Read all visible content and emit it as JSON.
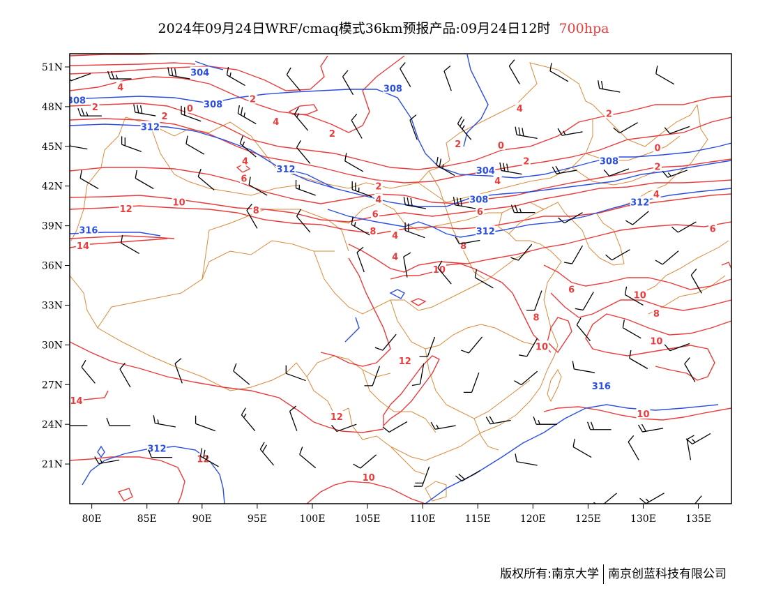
{
  "title": {
    "main": "2024年09月24日WRF/cmaq模式36km预报产品:09月24日12时",
    "level": "700hpa"
  },
  "footer": {
    "copyright": "版权所有:南京大学",
    "company": "南京创蓝科技有限公司"
  },
  "axes": {
    "x_ticks": [
      "80E",
      "85E",
      "90E",
      "95E",
      "100E",
      "105E",
      "110E",
      "115E",
      "120E",
      "125E",
      "130E",
      "135E"
    ],
    "y_ticks": [
      "51N",
      "48N",
      "45N",
      "42N",
      "39N",
      "36N",
      "33N",
      "30N",
      "27N",
      "24N",
      "21N"
    ],
    "lon_range": [
      78,
      138
    ],
    "lat_range": [
      18,
      52
    ]
  },
  "colors": {
    "temperature": "#e83c3c",
    "height": "#2a4ee0",
    "boundary": "#d98a3a",
    "wind": "#000000"
  },
  "height_labels": [
    {
      "text": "304",
      "lon": 89.8,
      "lat": 50.6
    },
    {
      "text": "308",
      "lon": 78.6,
      "lat": 48.5
    },
    {
      "text": "308",
      "lon": 91.0,
      "lat": 48.2
    },
    {
      "text": "308",
      "lon": 107.3,
      "lat": 49.4
    },
    {
      "text": "312",
      "lon": 85.3,
      "lat": 46.5
    },
    {
      "text": "312",
      "lon": 97.6,
      "lat": 43.3
    },
    {
      "text": "304",
      "lon": 115.7,
      "lat": 43.2
    },
    {
      "text": "308",
      "lon": 126.9,
      "lat": 43.9
    },
    {
      "text": "308",
      "lon": 115.1,
      "lat": 41.0
    },
    {
      "text": "312",
      "lon": 129.7,
      "lat": 40.8
    },
    {
      "text": "312",
      "lon": 115.7,
      "lat": 38.6
    },
    {
      "text": "316",
      "lon": 79.7,
      "lat": 38.7
    },
    {
      "text": "316",
      "lon": 126.2,
      "lat": 26.9
    },
    {
      "text": "312",
      "lon": 85.9,
      "lat": 22.2
    }
  ],
  "temp_labels": [
    {
      "text": "4",
      "lon": 82.6,
      "lat": 49.5
    },
    {
      "text": "2",
      "lon": 80.3,
      "lat": 48.0
    },
    {
      "text": "2",
      "lon": 86.6,
      "lat": 47.3
    },
    {
      "text": "0",
      "lon": 88.9,
      "lat": 47.9
    },
    {
      "text": "2",
      "lon": 94.6,
      "lat": 48.6
    },
    {
      "text": "4",
      "lon": 96.7,
      "lat": 46.9
    },
    {
      "text": "2",
      "lon": 101.8,
      "lat": 46.0
    },
    {
      "text": "4",
      "lon": 93.9,
      "lat": 43.9
    },
    {
      "text": "6",
      "lon": 93.8,
      "lat": 42.6
    },
    {
      "text": "8",
      "lon": 94.9,
      "lat": 40.2
    },
    {
      "text": "10",
      "lon": 87.9,
      "lat": 40.8
    },
    {
      "text": "12",
      "lon": 83.1,
      "lat": 40.3
    },
    {
      "text": "14",
      "lon": 79.2,
      "lat": 37.5
    },
    {
      "text": "4",
      "lon": 118.8,
      "lat": 47.9
    },
    {
      "text": "2",
      "lon": 113.2,
      "lat": 45.2
    },
    {
      "text": "0",
      "lon": 117.1,
      "lat": 45.1
    },
    {
      "text": "2",
      "lon": 119.4,
      "lat": 43.9
    },
    {
      "text": "4",
      "lon": 116.8,
      "lat": 42.4
    },
    {
      "text": "2",
      "lon": 126.9,
      "lat": 47.5
    },
    {
      "text": "0",
      "lon": 131.3,
      "lat": 44.9
    },
    {
      "text": "2",
      "lon": 131.3,
      "lat": 43.5
    },
    {
      "text": "4",
      "lon": 131.2,
      "lat": 41.4
    },
    {
      "text": "2",
      "lon": 106.0,
      "lat": 42.0
    },
    {
      "text": "4",
      "lon": 106.0,
      "lat": 41.0
    },
    {
      "text": "6",
      "lon": 105.7,
      "lat": 39.9
    },
    {
      "text": "8",
      "lon": 105.5,
      "lat": 38.6
    },
    {
      "text": "6",
      "lon": 115.2,
      "lat": 40.1
    },
    {
      "text": "8",
      "lon": 113.7,
      "lat": 37.5
    },
    {
      "text": "4",
      "lon": 107.5,
      "lat": 38.3
    },
    {
      "text": "4",
      "lon": 107.5,
      "lat": 36.7
    },
    {
      "text": "10",
      "lon": 111.5,
      "lat": 35.7
    },
    {
      "text": "6",
      "lon": 136.3,
      "lat": 38.8
    },
    {
      "text": "6",
      "lon": 123.5,
      "lat": 34.2
    },
    {
      "text": "10",
      "lon": 129.7,
      "lat": 33.8
    },
    {
      "text": "8",
      "lon": 131.2,
      "lat": 32.4
    },
    {
      "text": "8",
      "lon": 120.3,
      "lat": 32.1
    },
    {
      "text": "10",
      "lon": 131.2,
      "lat": 30.3
    },
    {
      "text": "10",
      "lon": 120.8,
      "lat": 29.9
    },
    {
      "text": "12",
      "lon": 108.4,
      "lat": 28.8
    },
    {
      "text": "12",
      "lon": 102.2,
      "lat": 24.6
    },
    {
      "text": "14",
      "lon": 78.6,
      "lat": 25.8
    },
    {
      "text": "10",
      "lon": 130.0,
      "lat": 24.8
    },
    {
      "text": "12",
      "lon": 90.1,
      "lat": 21.4
    },
    {
      "text": "10",
      "lon": 105.1,
      "lat": 20.0
    }
  ],
  "wind_barbs": [
    {
      "lon": 79.9,
      "lat": 50.5,
      "dir": 250,
      "spd": 10
    },
    {
      "lon": 83.6,
      "lat": 50.1,
      "dir": 270,
      "spd": 25
    },
    {
      "lon": 88.9,
      "lat": 50.1,
      "dir": 280,
      "spd": 30
    },
    {
      "lon": 93.9,
      "lat": 49.6,
      "dir": 300,
      "spd": 15
    },
    {
      "lon": 98.9,
      "lat": 49.2,
      "dir": 320,
      "spd": 10
    },
    {
      "lon": 103.7,
      "lat": 48.9,
      "dir": 330,
      "spd": 10
    },
    {
      "lon": 108.9,
      "lat": 49.5,
      "dir": 330,
      "spd": 10
    },
    {
      "lon": 112.6,
      "lat": 49.2,
      "dir": 340,
      "spd": 10
    },
    {
      "lon": 118.8,
      "lat": 49.7,
      "dir": 330,
      "spd": 10
    },
    {
      "lon": 123.2,
      "lat": 49.9,
      "dir": 300,
      "spd": 10
    },
    {
      "lon": 127.9,
      "lat": 49.1,
      "dir": 280,
      "spd": 20
    },
    {
      "lon": 132.8,
      "lat": 49.7,
      "dir": 300,
      "spd": 10
    },
    {
      "lon": 80.9,
      "lat": 47.3,
      "dir": 270,
      "spd": 25
    },
    {
      "lon": 85.8,
      "lat": 47.3,
      "dir": 280,
      "spd": 30
    },
    {
      "lon": 89.9,
      "lat": 46.9,
      "dir": 290,
      "spd": 20
    },
    {
      "lon": 94.9,
      "lat": 46.7,
      "dir": 300,
      "spd": 25
    },
    {
      "lon": 99.6,
      "lat": 46.2,
      "dir": 320,
      "spd": 15
    },
    {
      "lon": 104.5,
      "lat": 45.6,
      "dir": 330,
      "spd": 10
    },
    {
      "lon": 109.5,
      "lat": 45.5,
      "dir": 340,
      "spd": 10
    },
    {
      "lon": 114.4,
      "lat": 45.5,
      "dir": 320,
      "spd": 25
    },
    {
      "lon": 120.4,
      "lat": 45.6,
      "dir": 280,
      "spd": 30
    },
    {
      "lon": 124.5,
      "lat": 46.1,
      "dir": 260,
      "spd": 15
    },
    {
      "lon": 129.5,
      "lat": 46.8,
      "dir": 240,
      "spd": 10
    },
    {
      "lon": 134.2,
      "lat": 46.5,
      "dir": 250,
      "spd": 10
    },
    {
      "lon": 79.6,
      "lat": 44.8,
      "dir": 280,
      "spd": 20
    },
    {
      "lon": 84.5,
      "lat": 44.6,
      "dir": 290,
      "spd": 20
    },
    {
      "lon": 90.2,
      "lat": 44.4,
      "dir": 300,
      "spd": 10
    },
    {
      "lon": 94.9,
      "lat": 44.2,
      "dir": 310,
      "spd": 15
    },
    {
      "lon": 99.8,
      "lat": 43.7,
      "dir": 320,
      "spd": 10
    },
    {
      "lon": 104.6,
      "lat": 43.1,
      "dir": 300,
      "spd": 10
    },
    {
      "lon": 112.9,
      "lat": 42.8,
      "dir": 300,
      "spd": 25
    },
    {
      "lon": 119.0,
      "lat": 42.9,
      "dir": 280,
      "spd": 30
    },
    {
      "lon": 124.0,
      "lat": 43.2,
      "dir": 260,
      "spd": 20
    },
    {
      "lon": 128.7,
      "lat": 43.3,
      "dir": 250,
      "spd": 10
    },
    {
      "lon": 134.0,
      "lat": 43.2,
      "dir": 250,
      "spd": 15
    },
    {
      "lon": 80.6,
      "lat": 41.8,
      "dir": 300,
      "spd": 10
    },
    {
      "lon": 85.6,
      "lat": 41.8,
      "dir": 300,
      "spd": 10
    },
    {
      "lon": 91.1,
      "lat": 41.7,
      "dir": 310,
      "spd": 10
    },
    {
      "lon": 95.9,
      "lat": 41.3,
      "dir": 300,
      "spd": 10
    },
    {
      "lon": 100.3,
      "lat": 41.3,
      "dir": 290,
      "spd": 15
    },
    {
      "lon": 105.4,
      "lat": 41.2,
      "dir": 290,
      "spd": 25
    },
    {
      "lon": 110.3,
      "lat": 40.3,
      "dir": 280,
      "spd": 30
    },
    {
      "lon": 114.8,
      "lat": 40.3,
      "dir": 280,
      "spd": 30
    },
    {
      "lon": 120.2,
      "lat": 40.0,
      "dir": 270,
      "spd": 25
    },
    {
      "lon": 124.5,
      "lat": 40.0,
      "dir": 240,
      "spd": 10
    },
    {
      "lon": 130.5,
      "lat": 40.1,
      "dir": 230,
      "spd": 10
    },
    {
      "lon": 134.8,
      "lat": 39.3,
      "dir": 240,
      "spd": 10
    },
    {
      "lon": 95.0,
      "lat": 38.8,
      "dir": 330,
      "spd": 10
    },
    {
      "lon": 99.8,
      "lat": 38.5,
      "dir": 320,
      "spd": 10
    },
    {
      "lon": 105.2,
      "lat": 38.3,
      "dir": 300,
      "spd": 15
    },
    {
      "lon": 110.2,
      "lat": 38.1,
      "dir": 290,
      "spd": 20
    },
    {
      "lon": 115.2,
      "lat": 37.9,
      "dir": 260,
      "spd": 10
    },
    {
      "lon": 119.9,
      "lat": 37.6,
      "dir": 220,
      "spd": 10
    },
    {
      "lon": 124.5,
      "lat": 37.5,
      "dir": 210,
      "spd": 10
    },
    {
      "lon": 128.8,
      "lat": 37.2,
      "dir": 240,
      "spd": 10
    },
    {
      "lon": 133.2,
      "lat": 37.1,
      "dir": 230,
      "spd": 10
    },
    {
      "lon": 84.3,
      "lat": 36.9,
      "dir": 300,
      "spd": 10
    },
    {
      "lon": 104.7,
      "lat": 35.5,
      "dir": 340,
      "spd": 10
    },
    {
      "lon": 108.6,
      "lat": 35.1,
      "dir": 350,
      "spd": 10
    },
    {
      "lon": 112.6,
      "lat": 34.6,
      "dir": 320,
      "spd": 10
    },
    {
      "lon": 116.4,
      "lat": 34.3,
      "dir": 300,
      "spd": 10
    },
    {
      "lon": 120.8,
      "lat": 34.1,
      "dir": 200,
      "spd": 10
    },
    {
      "lon": 125.5,
      "lat": 34.0,
      "dir": 210,
      "spd": 10
    },
    {
      "lon": 130.0,
      "lat": 33.0,
      "dir": 300,
      "spd": 10
    },
    {
      "lon": 135.3,
      "lat": 33.9,
      "dir": 330,
      "spd": 10
    },
    {
      "lon": 107.6,
      "lat": 30.8,
      "dir": 220,
      "spd": 10
    },
    {
      "lon": 111.1,
      "lat": 30.6,
      "dir": 200,
      "spd": 10
    },
    {
      "lon": 115.4,
      "lat": 30.6,
      "dir": 220,
      "spd": 10
    },
    {
      "lon": 120.4,
      "lat": 30.5,
      "dir": 210,
      "spd": 10
    },
    {
      "lon": 125.2,
      "lat": 30.3,
      "dir": 320,
      "spd": 10
    },
    {
      "lon": 129.8,
      "lat": 30.5,
      "dir": 300,
      "spd": 10
    },
    {
      "lon": 134.2,
      "lat": 30.1,
      "dir": 250,
      "spd": 10
    },
    {
      "lon": 106.1,
      "lat": 28.4,
      "dir": 200,
      "spd": 10
    },
    {
      "lon": 110.1,
      "lat": 28.6,
      "dir": 190,
      "spd": 10
    },
    {
      "lon": 115.1,
      "lat": 27.9,
      "dir": 200,
      "spd": 10
    },
    {
      "lon": 120.4,
      "lat": 28.0,
      "dir": 230,
      "spd": 10
    },
    {
      "lon": 125.6,
      "lat": 27.9,
      "dir": 280,
      "spd": 10
    },
    {
      "lon": 130.4,
      "lat": 28.2,
      "dir": 300,
      "spd": 10
    },
    {
      "lon": 134.7,
      "lat": 27.2,
      "dir": 330,
      "spd": 10
    },
    {
      "lon": 80.3,
      "lat": 27.1,
      "dir": 320,
      "spd": 10
    },
    {
      "lon": 83.5,
      "lat": 26.8,
      "dir": 330,
      "spd": 10
    },
    {
      "lon": 88.2,
      "lat": 27.1,
      "dir": 340,
      "spd": 10
    },
    {
      "lon": 94.3,
      "lat": 27.0,
      "dir": 310,
      "spd": 10
    },
    {
      "lon": 99.4,
      "lat": 27.3,
      "dir": 290,
      "spd": 10
    },
    {
      "lon": 79.6,
      "lat": 23.9,
      "dir": 270,
      "spd": 10
    },
    {
      "lon": 83.5,
      "lat": 23.9,
      "dir": 270,
      "spd": 10
    },
    {
      "lon": 87.6,
      "lat": 23.8,
      "dir": 280,
      "spd": 15
    },
    {
      "lon": 91.2,
      "lat": 23.5,
      "dir": 290,
      "spd": 10
    },
    {
      "lon": 94.8,
      "lat": 23.5,
      "dir": 320,
      "spd": 15
    },
    {
      "lon": 98.6,
      "lat": 23.5,
      "dir": 340,
      "spd": 10
    },
    {
      "lon": 104.0,
      "lat": 24.0,
      "dir": 250,
      "spd": 10
    },
    {
      "lon": 108.6,
      "lat": 24.2,
      "dir": 240,
      "spd": 10
    },
    {
      "lon": 113.0,
      "lat": 23.9,
      "dir": 260,
      "spd": 15
    },
    {
      "lon": 118.0,
      "lat": 24.3,
      "dir": 260,
      "spd": 20
    },
    {
      "lon": 122.2,
      "lat": 24.0,
      "dir": 270,
      "spd": 15
    },
    {
      "lon": 127.1,
      "lat": 23.6,
      "dir": 270,
      "spd": 20
    },
    {
      "lon": 131.8,
      "lat": 23.7,
      "dir": 260,
      "spd": 20
    },
    {
      "lon": 136.1,
      "lat": 23.3,
      "dir": 240,
      "spd": 15
    },
    {
      "lon": 82.5,
      "lat": 21.3,
      "dir": 260,
      "spd": 15
    },
    {
      "lon": 87.3,
      "lat": 21.5,
      "dir": 270,
      "spd": 10
    },
    {
      "lon": 91.5,
      "lat": 20.8,
      "dir": 300,
      "spd": 25
    },
    {
      "lon": 96.5,
      "lat": 20.9,
      "dir": 320,
      "spd": 20
    },
    {
      "lon": 100.3,
      "lat": 20.7,
      "dir": 310,
      "spd": 10
    },
    {
      "lon": 105.8,
      "lat": 21.7,
      "dir": 230,
      "spd": 10
    },
    {
      "lon": 110.6,
      "lat": 20.8,
      "dir": 200,
      "spd": 20
    },
    {
      "lon": 115.2,
      "lat": 20.5,
      "dir": 240,
      "spd": 20
    },
    {
      "lon": 120.4,
      "lat": 20.9,
      "dir": 280,
      "spd": 10
    },
    {
      "lon": 125.3,
      "lat": 21.5,
      "dir": 300,
      "spd": 10
    },
    {
      "lon": 129.6,
      "lat": 21.3,
      "dir": 330,
      "spd": 10
    },
    {
      "lon": 134.3,
      "lat": 21.3,
      "dir": 350,
      "spd": 10
    },
    {
      "lon": 131.9,
      "lat": 18.8,
      "dir": 240,
      "spd": 15
    },
    {
      "lon": 127.6,
      "lat": 18.8,
      "dir": 230,
      "spd": 10
    },
    {
      "lon": 135.3,
      "lat": 18.6,
      "dir": 220,
      "spd": 10
    }
  ]
}
